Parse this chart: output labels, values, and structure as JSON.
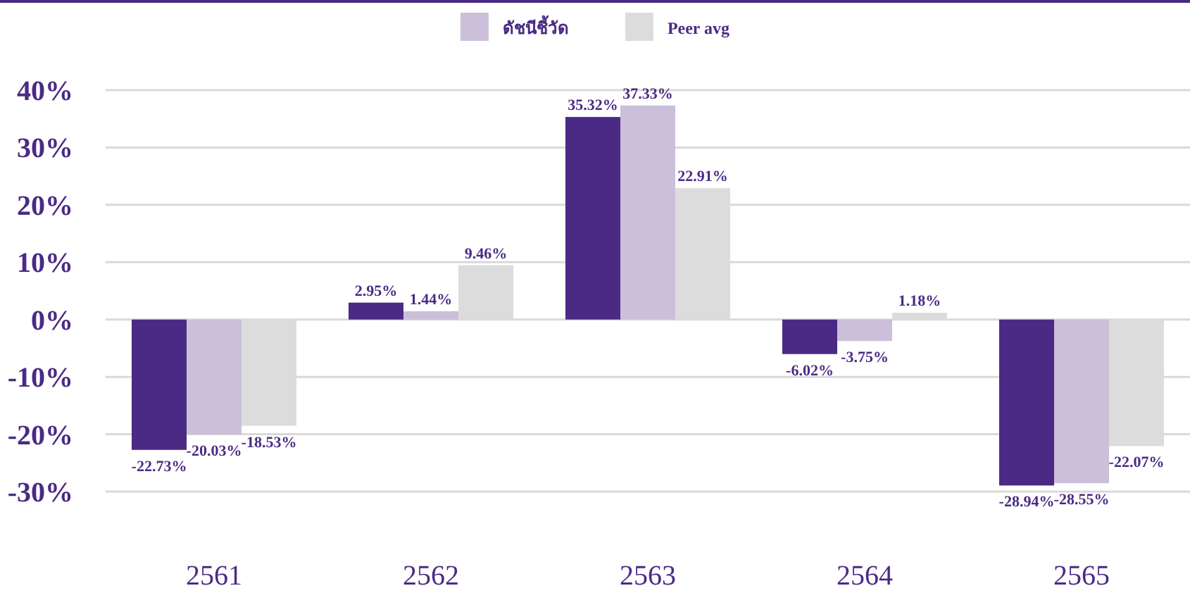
{
  "chart_data": {
    "type": "bar",
    "categories": [
      "2561",
      "2562",
      "2563",
      "2564",
      "2565"
    ],
    "series": [
      {
        "color": "#4b2a85",
        "values": [
          -22.73,
          2.95,
          35.32,
          -6.02,
          -28.94
        ],
        "value_labels": [
          "-22.73%",
          "2.95%",
          "35.32%",
          "-6.02%",
          "-28.94%"
        ]
      },
      {
        "name": "ดัชนีชี้วัด",
        "color": "#cbbfda",
        "values": [
          -20.03,
          1.44,
          37.33,
          -3.75,
          -28.55
        ],
        "value_labels": [
          "-20.03%",
          "1.44%",
          "37.33%",
          "-3.75%",
          "-28.55%"
        ]
      },
      {
        "name": "Peer avg",
        "color": "#dcdcdc",
        "values": [
          -18.53,
          9.46,
          22.91,
          1.18,
          -22.07
        ],
        "value_labels": [
          "-18.53%",
          "9.46%",
          "22.91%",
          "1.18%",
          "-22.07%"
        ]
      }
    ],
    "ylim": [
      -30,
      40
    ],
    "yticks": [
      {
        "value": -30,
        "label": "-30%"
      },
      {
        "value": -20,
        "label": "-20%"
      },
      {
        "value": -10,
        "label": "-10%"
      },
      {
        "value": 0,
        "label": "0%"
      },
      {
        "value": 10,
        "label": "10%"
      },
      {
        "value": 20,
        "label": "20%"
      },
      {
        "value": 30,
        "label": "30%"
      },
      {
        "value": 40,
        "label": "40%"
      }
    ],
    "grid": "y",
    "legend": "top"
  }
}
